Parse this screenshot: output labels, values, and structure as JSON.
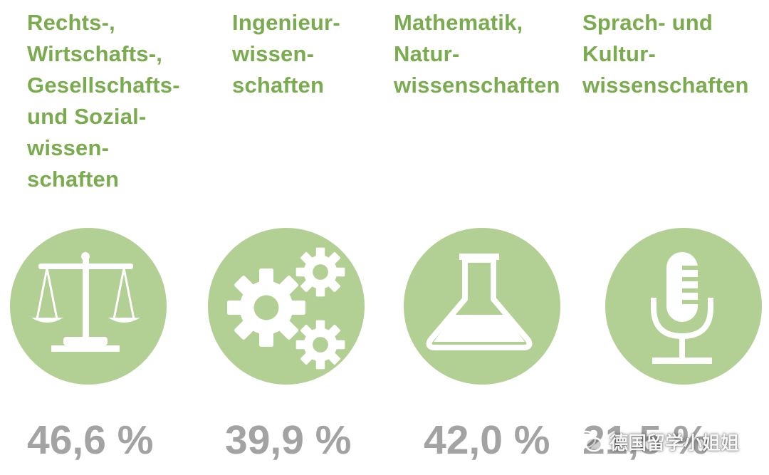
{
  "colors": {
    "title": "#7aab4f",
    "circle": "#b2cf94",
    "icon": "#ffffff",
    "percent": "#a3a3a3"
  },
  "fields": [
    {
      "title": "Rechts-,\nWirtschafts-,\nGesellschafts-\nund Sozial-\nwissen-\nschaften",
      "icon": "scales-icon",
      "percent": "46,6 %"
    },
    {
      "title": "Ingenieur-\nwissen-\nschaften",
      "icon": "gears-icon",
      "percent": "39,9 %"
    },
    {
      "title": "Mathematik,\nNatur-\nwissenschaften",
      "icon": "flask-icon",
      "percent": "42,0 %"
    },
    {
      "title": "Sprach- und\nKultur-\nwissenschaften",
      "icon": "microphone-icon",
      "percent": "21,5 %"
    }
  ],
  "watermark": {
    "text": "德国留学小姐姐",
    "icon": "wechat-icon"
  }
}
